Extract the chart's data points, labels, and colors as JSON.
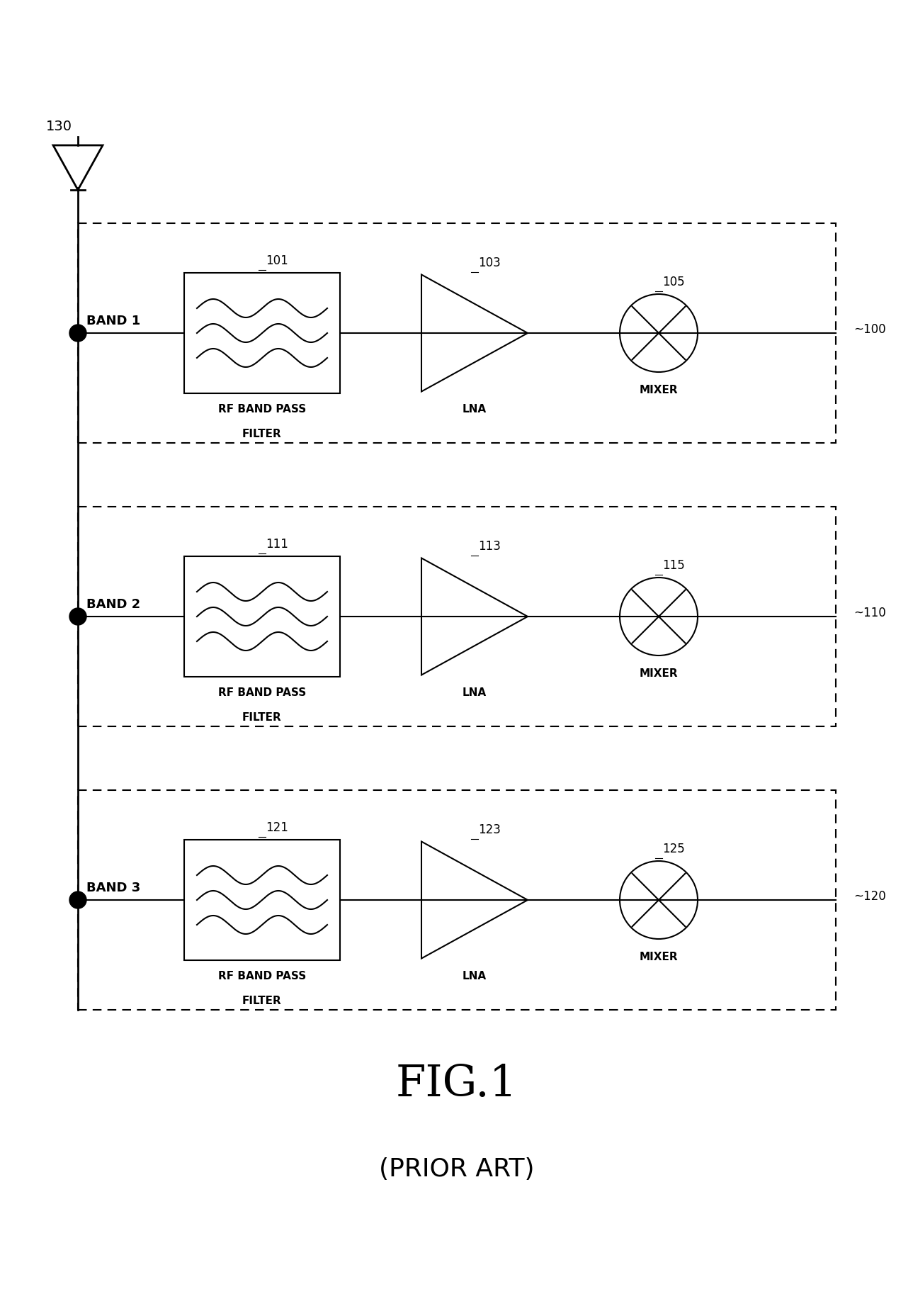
{
  "title": "FIG.1",
  "subtitle": "(PRIOR ART)",
  "background_color": "#ffffff",
  "line_color": "#000000",
  "bands": [
    "BAND 1",
    "BAND 2",
    "BAND 3"
  ],
  "band_labels": [
    "100",
    "110",
    "120"
  ],
  "filter_labels": [
    "101",
    "111",
    "121"
  ],
  "lna_labels": [
    "103",
    "113",
    "123"
  ],
  "mixer_labels": [
    "105",
    "115",
    "125"
  ],
  "antenna_label": "130",
  "filter_text_line1": "RF BAND PASS",
  "filter_text_line2": "FILTER",
  "lna_text": "LNA",
  "mixer_text": "MIXER",
  "fig_width": 12.89,
  "fig_height": 18.5,
  "dpi": 100
}
